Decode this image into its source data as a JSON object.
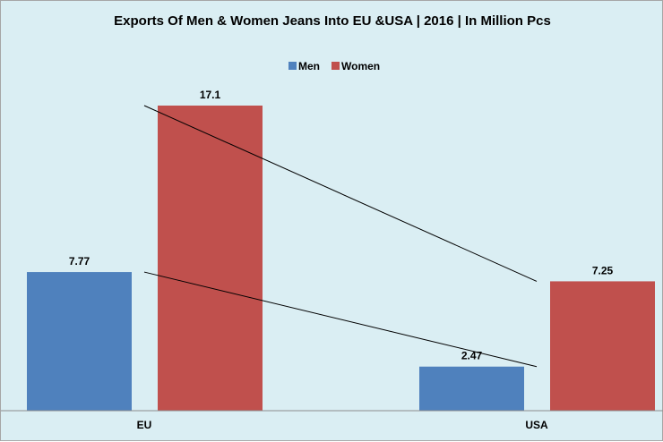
{
  "chart_data": {
    "type": "bar",
    "title": "Exports Of Men & Women Jeans Into EU &USA  |  2016 | In Million Pcs",
    "categories": [
      "EU",
      "USA"
    ],
    "series": [
      {
        "name": "Men",
        "values": [
          7.77,
          2.47
        ],
        "color": "#4f81bd"
      },
      {
        "name": "Women",
        "values": [
          17.1,
          7.25
        ],
        "color": "#c0504d"
      }
    ],
    "data_labels": [
      [
        "7.77",
        "2.47"
      ],
      [
        "17.1",
        "7.25"
      ]
    ],
    "ylim": [
      0,
      18.5
    ],
    "legend_position": "top",
    "grid": false,
    "trend_lines": true,
    "background": "#daeef3"
  }
}
